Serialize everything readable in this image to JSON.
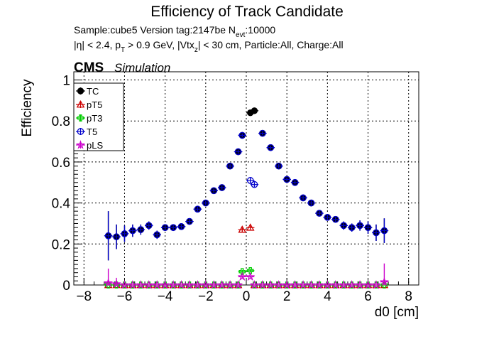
{
  "title": "Efficiency of Track Candidate",
  "subtitle_line1": {
    "prefix": "Sample:cube5   Version tag:2147be  N",
    "sub": "evt",
    "suffix": ":10000"
  },
  "subtitle_line2": {
    "a": "|η| < 2.4, p",
    "a_sub": "T",
    "b": " > 0.9 GeV, |Vtx",
    "b_sub": "z",
    "c": "| < 30 cm, Particle:All, Charge:All"
  },
  "cms_label": "CMS",
  "sim_label": "Simulation",
  "chart_data": {
    "type": "scatter",
    "xlabel": "d0 [cm]",
    "ylabel": "Efficiency",
    "xlim": [
      -8.5,
      8.5
    ],
    "ylim": [
      0,
      1.04
    ],
    "xticks": [
      -8,
      -6,
      -4,
      -2,
      0,
      2,
      4,
      6,
      8
    ],
    "xtick_labels": [
      "−8",
      "−6",
      "−4",
      "−2",
      "0",
      "2",
      "4",
      "6",
      "8"
    ],
    "yticks": [
      0,
      0.2,
      0.4,
      0.6,
      0.8,
      1
    ],
    "ytick_labels": [
      "0",
      "0.2",
      "0.4",
      "0.6",
      "0.8",
      "1"
    ],
    "grid": true,
    "legend_position": "top-left",
    "series": [
      {
        "name": "TC",
        "color": "#000000",
        "marker": "filled-circle",
        "x": [
          -6.8,
          -6.4,
          -6.0,
          -5.6,
          -5.2,
          -4.8,
          -4.4,
          -4.0,
          -3.6,
          -3.2,
          -2.8,
          -2.4,
          -2.0,
          -1.6,
          -1.2,
          -0.8,
          -0.4,
          -0.2,
          0.2,
          0.4,
          0.8,
          1.2,
          1.6,
          2.0,
          2.4,
          2.8,
          3.2,
          3.6,
          4.0,
          4.4,
          4.8,
          5.2,
          5.6,
          6.0,
          6.4,
          6.8
        ],
        "y": [
          0.24,
          0.235,
          0.25,
          0.265,
          0.27,
          0.29,
          0.245,
          0.28,
          0.28,
          0.285,
          0.31,
          0.37,
          0.4,
          0.46,
          0.475,
          0.58,
          0.65,
          0.73,
          0.84,
          0.85,
          0.74,
          0.67,
          0.58,
          0.515,
          0.5,
          0.425,
          0.4,
          0.35,
          0.33,
          0.32,
          0.29,
          0.28,
          0.29,
          0.28,
          0.255,
          0.265
        ],
        "yerr": [
          0.12,
          0.06,
          0.04,
          0.03,
          0.025,
          0.02,
          0.02,
          0.015,
          0.015,
          0.015,
          0.012,
          0.012,
          0.01,
          0.01,
          0.01,
          0.01,
          0.01,
          0.01,
          0.01,
          0.01,
          0.01,
          0.01,
          0.01,
          0.01,
          0.01,
          0.012,
          0.012,
          0.012,
          0.015,
          0.015,
          0.02,
          0.02,
          0.025,
          0.03,
          0.04,
          0.06
        ]
      },
      {
        "name": "pT5",
        "color": "#cc0000",
        "marker": "open-triangle",
        "x": [
          -6.8,
          -6.4,
          -6.0,
          -5.6,
          -5.2,
          -4.8,
          -4.4,
          -4.0,
          -3.6,
          -3.2,
          -2.8,
          -2.4,
          -2.0,
          -1.6,
          -1.2,
          -0.8,
          -0.4,
          -0.2,
          0.2,
          0.4,
          0.8,
          1.2,
          1.6,
          2.0,
          2.4,
          2.8,
          3.2,
          3.6,
          4.0,
          4.4,
          4.8,
          5.2,
          5.6,
          6.0,
          6.4,
          6.8
        ],
        "y": [
          0,
          0,
          0,
          0,
          0,
          0,
          0,
          0,
          0,
          0,
          0,
          0,
          0,
          0,
          0,
          0,
          0,
          0.27,
          0.28,
          0,
          0,
          0,
          0,
          0,
          0,
          0,
          0,
          0,
          0,
          0,
          0,
          0,
          0,
          0,
          0,
          0
        ],
        "yerr": [
          0,
          0,
          0,
          0,
          0,
          0,
          0,
          0,
          0,
          0,
          0,
          0,
          0,
          0,
          0,
          0,
          0,
          0.01,
          0.01,
          0,
          0,
          0,
          0,
          0,
          0,
          0,
          0,
          0,
          0,
          0,
          0,
          0,
          0,
          0,
          0,
          0
        ]
      },
      {
        "name": "pT3",
        "color": "#00cc00",
        "marker": "open-cross",
        "x": [
          -6.8,
          -6.4,
          -6.0,
          -5.6,
          -5.2,
          -4.8,
          -4.4,
          -4.0,
          -3.6,
          -3.2,
          -2.8,
          -2.4,
          -2.0,
          -1.6,
          -1.2,
          -0.8,
          -0.4,
          -0.2,
          0.2,
          0.4,
          0.8,
          1.2,
          1.6,
          2.0,
          2.4,
          2.8,
          3.2,
          3.6,
          4.0,
          4.4,
          4.8,
          5.2,
          5.6,
          6.0,
          6.4,
          6.8
        ],
        "y": [
          0,
          0,
          0,
          0,
          0,
          0,
          0,
          0,
          0,
          0,
          0,
          0,
          0,
          0,
          0,
          0,
          0,
          0.065,
          0.07,
          0,
          0,
          0,
          0,
          0,
          0,
          0,
          0,
          0,
          0,
          0,
          0,
          0,
          0,
          0,
          0,
          0
        ],
        "yerr": [
          0,
          0,
          0,
          0,
          0,
          0,
          0,
          0,
          0,
          0,
          0,
          0,
          0,
          0,
          0,
          0,
          0,
          0.008,
          0.008,
          0,
          0,
          0,
          0,
          0,
          0,
          0,
          0,
          0,
          0,
          0,
          0,
          0,
          0,
          0,
          0,
          0
        ]
      },
      {
        "name": "T5",
        "color": "#0000cc",
        "marker": "open-circle",
        "x": [
          -6.8,
          -6.4,
          -6.0,
          -5.6,
          -5.2,
          -4.8,
          -4.4,
          -4.0,
          -3.6,
          -3.2,
          -2.8,
          -2.4,
          -2.0,
          -1.6,
          -1.2,
          -0.8,
          -0.4,
          -0.2,
          0.2,
          0.4,
          0.8,
          1.2,
          1.6,
          2.0,
          2.4,
          2.8,
          3.2,
          3.6,
          4.0,
          4.4,
          4.8,
          5.2,
          5.6,
          6.0,
          6.4,
          6.8
        ],
        "y": [
          0.24,
          0.235,
          0.25,
          0.265,
          0.27,
          0.29,
          0.245,
          0.28,
          0.28,
          0.285,
          0.31,
          0.37,
          0.4,
          0.46,
          0.475,
          0.58,
          0.65,
          0.73,
          0.51,
          0.49,
          0.74,
          0.67,
          0.58,
          0.515,
          0.5,
          0.425,
          0.4,
          0.35,
          0.33,
          0.32,
          0.29,
          0.28,
          0.29,
          0.28,
          0.255,
          0.265
        ],
        "yerr": [
          0.12,
          0.06,
          0.04,
          0.03,
          0.025,
          0.02,
          0.02,
          0.015,
          0.015,
          0.015,
          0.012,
          0.012,
          0.01,
          0.01,
          0.01,
          0.01,
          0.01,
          0.01,
          0.012,
          0.012,
          0.01,
          0.01,
          0.01,
          0.01,
          0.01,
          0.012,
          0.012,
          0.012,
          0.015,
          0.015,
          0.02,
          0.02,
          0.025,
          0.03,
          0.04,
          0.06
        ]
      },
      {
        "name": "pLS",
        "color": "#cc00cc",
        "marker": "open-star",
        "x": [
          -6.8,
          -6.4,
          -6.0,
          -5.6,
          -5.2,
          -4.8,
          -4.4,
          -4.0,
          -3.6,
          -3.2,
          -2.8,
          -2.4,
          -2.0,
          -1.6,
          -1.2,
          -0.8,
          -0.4,
          -0.2,
          0.2,
          0.4,
          0.8,
          1.2,
          1.6,
          2.0,
          2.4,
          2.8,
          3.2,
          3.6,
          4.0,
          4.4,
          4.8,
          5.2,
          5.6,
          6.0,
          6.4,
          6.8
        ],
        "y": [
          0.01,
          0.005,
          0,
          0,
          0,
          0,
          0,
          0,
          0,
          0,
          0,
          0,
          0,
          0,
          0,
          0,
          0,
          0.04,
          0.04,
          0,
          0,
          0,
          0,
          0,
          0,
          0,
          0,
          0,
          0,
          0,
          0,
          0,
          0,
          0,
          0,
          0.015
        ],
        "yerr": [
          0.07,
          0.03,
          0,
          0,
          0,
          0,
          0,
          0,
          0,
          0,
          0,
          0,
          0,
          0,
          0,
          0,
          0,
          0.006,
          0.006,
          0,
          0,
          0,
          0,
          0,
          0,
          0,
          0,
          0,
          0,
          0,
          0,
          0,
          0,
          0,
          0,
          0.09
        ]
      }
    ]
  }
}
